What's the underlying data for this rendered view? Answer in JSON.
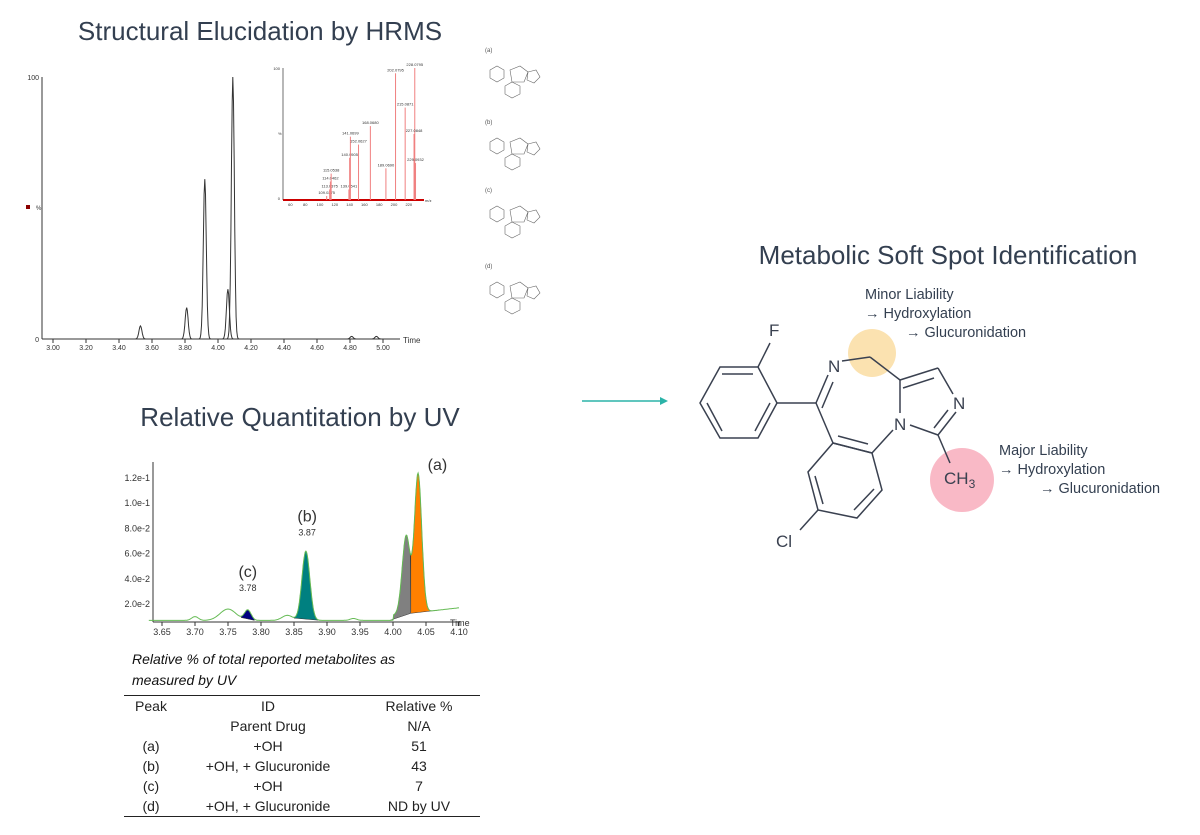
{
  "titles": {
    "hrms": "Structural Elucidation by HRMS",
    "uv": "Relative Quantitation by UV",
    "softspot": "Metabolic Soft Spot Identification"
  },
  "colors": {
    "title": "#333f50",
    "arrow": "#2bb3a8",
    "ms_spectrum": "#f08080",
    "minor_highlight": "#fbe2b0",
    "major_highlight": "#f9b9c6",
    "peak_a": "#ff8000",
    "peak_a_shoulder": "#808080",
    "peak_b": "#008080",
    "peak_c": "#000080",
    "uv_trace": "#66bb55"
  },
  "chart_data": [
    {
      "type": "line",
      "name": "hrms-chromatogram",
      "xlabel": "Time",
      "ylabel": "%",
      "xlim": [
        2.95,
        5.1
      ],
      "ylim": [
        0,
        100
      ],
      "x_ticks": [
        "3.00",
        "3.20",
        "3.40",
        "3.60",
        "3.80",
        "4.00",
        "4.20",
        "4.40",
        "4.60",
        "4.80",
        "5.00"
      ],
      "y_ticks": [
        "0",
        "100"
      ],
      "peaks": [
        {
          "x": 3.53,
          "y": 5
        },
        {
          "x": 3.81,
          "y": 12
        },
        {
          "x": 3.92,
          "y": 61
        },
        {
          "x": 4.06,
          "y": 19
        },
        {
          "x": 4.09,
          "y": 100
        },
        {
          "x": 4.81,
          "y": 1
        },
        {
          "x": 4.96,
          "y": 1
        }
      ]
    },
    {
      "type": "bar",
      "name": "ms-spectrum-inset",
      "xlabel": "m/z",
      "ylabel": "%",
      "xlim": [
        40,
        240
      ],
      "ylim": [
        0,
        100
      ],
      "x_ticks": [
        "60",
        "80",
        "100",
        "120",
        "140",
        "160",
        "180",
        "200",
        "220"
      ],
      "y_ticks": [
        "0",
        "100"
      ],
      "labeled_peaks": [
        {
          "mz": 109.0275,
          "label": "109.0275",
          "y": 3
        },
        {
          "mz": 113.0375,
          "label": "113.0375",
          "y": 8
        },
        {
          "mz": 114.0462,
          "label": "114.0462",
          "y": 14
        },
        {
          "mz": 115.0538,
          "label": "115.0538",
          "y": 20
        },
        {
          "mz": 139.0541,
          "label": "139.0541",
          "y": 8
        },
        {
          "mz": 140.0505,
          "label": "140.0505",
          "y": 32
        },
        {
          "mz": 141.0699,
          "label": "141.0699",
          "y": 48
        },
        {
          "mz": 152.0627,
          "label": "152.0627",
          "y": 42
        },
        {
          "mz": 168.068,
          "label": "168.0680",
          "y": 56
        },
        {
          "mz": 189.069,
          "label": "189.0690",
          "y": 24
        },
        {
          "mz": 202.0795,
          "label": "202.0795",
          "y": 96
        },
        {
          "mz": 215.0871,
          "label": "215.0871",
          "y": 70
        },
        {
          "mz": 228.0795,
          "label": "228.0795",
          "y": 100
        },
        {
          "mz": 227.0848,
          "label": "227.0848",
          "y": 50
        },
        {
          "mz": 229.0932,
          "label": "229.0932",
          "y": 28
        }
      ]
    },
    {
      "type": "area",
      "name": "uv-chromatogram",
      "xlabel": "Time",
      "xlim": [
        3.63,
        4.1
      ],
      "ylim": [
        0.004,
        0.135
      ],
      "x_ticks": [
        "3.65",
        "3.70",
        "3.75",
        "3.80",
        "3.85",
        "3.90",
        "3.95",
        "4.00",
        "4.05",
        "4.10"
      ],
      "y_ticks": [
        "2.0e-2",
        "4.0e-2",
        "6.0e-2",
        "8.0e-2",
        "1.0e-1",
        "1.2e-1"
      ],
      "peaks": [
        {
          "id": "(c)",
          "rt": 3.78,
          "rt_label": "3.78",
          "height": 0.027
        },
        {
          "id": "(b)",
          "rt": 3.87,
          "rt_label": "3.87",
          "height": 0.071
        },
        {
          "id": "",
          "rt": 4.02,
          "height": 0.083
        },
        {
          "id": "(a)",
          "rt": 4.04,
          "height": 0.131
        }
      ]
    }
  ],
  "structures": [
    {
      "label": "(a)"
    },
    {
      "label": "(b)"
    },
    {
      "label": "(c)"
    },
    {
      "label": "(d)"
    }
  ],
  "molecule": {
    "atoms": {
      "F": "F",
      "N4": "N",
      "N2": "N",
      "N1": "N",
      "Cl": "Cl",
      "CH3": "CH",
      "CH3_sub": "3"
    }
  },
  "annotations": {
    "minor": {
      "title": "Minor Liability",
      "step1": "→  Hydroxylation",
      "step2": "→  Glucuronidation"
    },
    "major": {
      "title": "Major Liability",
      "step1": "→  Hydroxylation",
      "step2": "→  Glucuronidation"
    }
  },
  "table": {
    "caption_line1": "Relative % of total reported metabolites as",
    "caption_line2": "measured by UV",
    "headers": [
      "Peak",
      "ID",
      "Relative %"
    ],
    "rows": [
      [
        "",
        "Parent Drug",
        "N/A"
      ],
      [
        "(a)",
        "+OH",
        "51"
      ],
      [
        "(b)",
        "+OH, + Glucuronide",
        "43"
      ],
      [
        "(c)",
        "+OH",
        "7"
      ],
      [
        "(d)",
        "+OH, + Glucuronide",
        "ND by UV"
      ]
    ]
  }
}
